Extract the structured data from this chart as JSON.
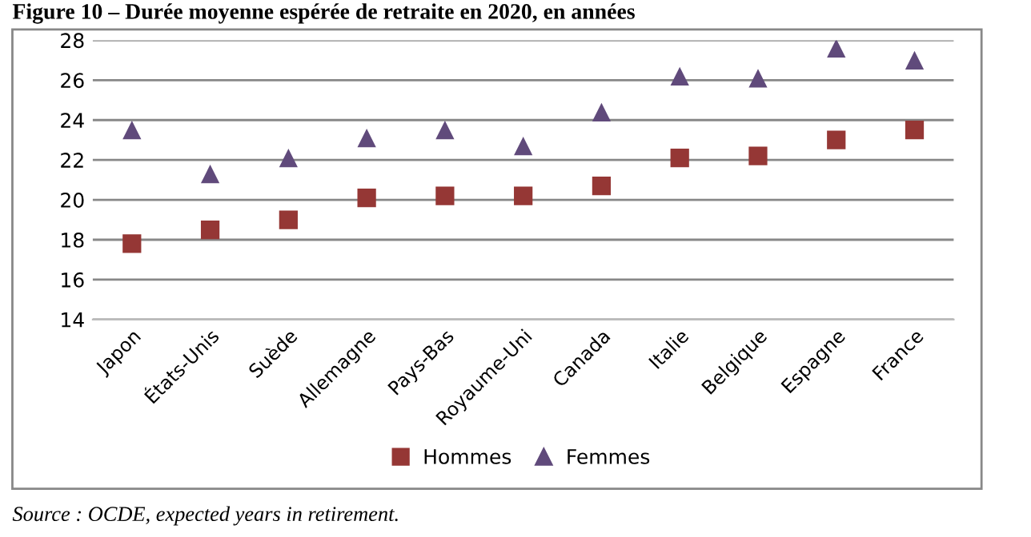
{
  "chart_data": {
    "type": "scatter",
    "title": "Figure 10 – Durée moyenne espérée de retraite en 2020, en années",
    "categories": [
      "Japon",
      "États-Unis",
      "Suède",
      "Allemagne",
      "Pays-Bas",
      "Royaume-Uni",
      "Canada",
      "Italie",
      "Belgique",
      "Espagne",
      "France"
    ],
    "series": [
      {
        "name": "Hommes",
        "color": "#953735",
        "marker": "square",
        "values": [
          17.8,
          18.5,
          19.0,
          20.1,
          20.2,
          20.2,
          20.7,
          22.1,
          22.2,
          23.0,
          23.5
        ]
      },
      {
        "name": "Femmes",
        "color": "#604a7b",
        "marker": "triangle",
        "values": [
          23.5,
          21.3,
          22.1,
          23.1,
          23.5,
          22.7,
          24.4,
          26.2,
          26.1,
          27.6,
          27.0
        ]
      }
    ],
    "ylim": [
      14,
      28
    ],
    "yticks": [
      14,
      16,
      18,
      20,
      22,
      24,
      26,
      28
    ],
    "grid": "y",
    "legend": "bottom",
    "annotations": [
      "Source : OCDE, expected years in retirement."
    ]
  }
}
